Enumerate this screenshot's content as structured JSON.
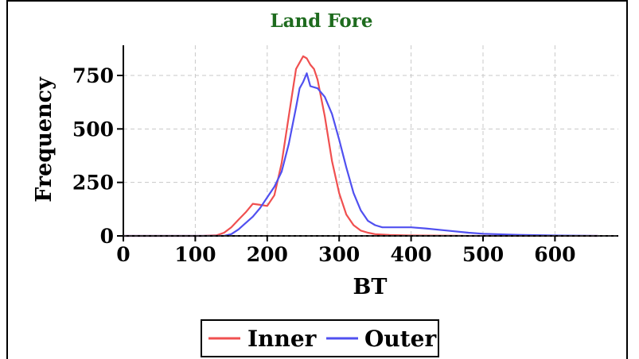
{
  "chart_data": {
    "type": "line",
    "title": "Land Fore",
    "xlabel": "BT",
    "ylabel": "Frequency",
    "xlim": [
      0,
      690
    ],
    "ylim": [
      0,
      900
    ],
    "grid": true,
    "legend_placement": "bottom-center",
    "x_ticks": [
      0,
      100,
      200,
      300,
      400,
      500,
      600
    ],
    "y_ticks": [
      0,
      250,
      500,
      750
    ],
    "series": [
      {
        "name": "Inner",
        "color": "#f05050",
        "x": [
          0,
          110,
          130,
          140,
          150,
          160,
          170,
          180,
          190,
          200,
          210,
          220,
          230,
          240,
          245,
          250,
          255,
          260,
          265,
          270,
          280,
          290,
          300,
          310,
          320,
          330,
          340,
          350,
          370,
          400,
          450,
          480,
          500,
          550,
          600,
          660
        ],
        "y": [
          0,
          0,
          3,
          15,
          40,
          75,
          110,
          150,
          145,
          140,
          190,
          340,
          560,
          780,
          810,
          840,
          830,
          800,
          780,
          730,
          560,
          350,
          200,
          100,
          50,
          25,
          15,
          8,
          4,
          2,
          1,
          0,
          0,
          0,
          0,
          0
        ]
      },
      {
        "name": "Outer",
        "color": "#5050f0",
        "x": [
          0,
          140,
          150,
          160,
          170,
          180,
          190,
          200,
          210,
          220,
          230,
          240,
          245,
          250,
          255,
          260,
          270,
          280,
          290,
          300,
          310,
          320,
          330,
          340,
          350,
          360,
          380,
          400,
          420,
          450,
          480,
          500,
          550,
          600,
          660
        ],
        "y": [
          0,
          0,
          8,
          30,
          60,
          90,
          130,
          180,
          230,
          300,
          430,
          600,
          690,
          720,
          760,
          700,
          690,
          650,
          570,
          450,
          320,
          200,
          120,
          70,
          50,
          40,
          40,
          40,
          35,
          25,
          15,
          10,
          5,
          2,
          0
        ]
      }
    ]
  }
}
